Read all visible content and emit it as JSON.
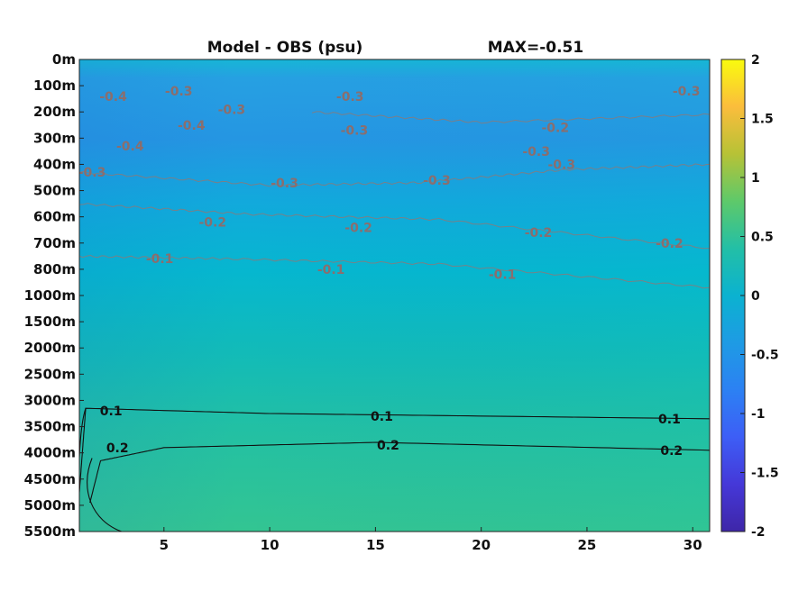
{
  "chart_data": {
    "type": "heatmap",
    "title": "Model - OBS (psu)",
    "subtitle": "MAX=-0.51",
    "x": {
      "ticks": [
        5,
        10,
        15,
        20,
        25,
        30
      ],
      "range": [
        1,
        30.8
      ]
    },
    "y": {
      "ticks": [
        "0m",
        "100m",
        "200m",
        "300m",
        "400m",
        "500m",
        "600m",
        "700m",
        "800m",
        "1000m",
        "1500m",
        "2000m",
        "2500m",
        "3000m",
        "3500m",
        "4000m",
        "4500m",
        "5000m",
        "5500m"
      ]
    },
    "colorbar": {
      "ticks": [
        "2",
        "1.5",
        "1",
        "0.5",
        "0",
        "-0.5",
        "-1",
        "-1.5",
        "-2"
      ],
      "range": [
        -2,
        2
      ],
      "colormap": "parula"
    },
    "contours": [
      {
        "level": -0.1,
        "points": [
          [
            1,
            7.5
          ],
          [
            8,
            7.6
          ],
          [
            18,
            7.8
          ],
          [
            30.8,
            8.7
          ]
        ]
      },
      {
        "level": -0.2,
        "points": [
          [
            1,
            5.5
          ],
          [
            9,
            5.9
          ],
          [
            18,
            6.1
          ],
          [
            30.8,
            7.2
          ]
        ]
      },
      {
        "level": -0.2,
        "points": [
          [
            12,
            2.0
          ],
          [
            20,
            2.4
          ],
          [
            30.8,
            2.1
          ]
        ]
      },
      {
        "level": -0.3,
        "points": [
          [
            1,
            4.3
          ],
          [
            10,
            4.8
          ],
          [
            17,
            4.7
          ],
          [
            24,
            4.2
          ],
          [
            30.8,
            4.0
          ]
        ]
      },
      {
        "level": 0.1,
        "points": [
          [
            1,
            16.5
          ],
          [
            1.3,
            13.3
          ],
          [
            10,
            13.5
          ],
          [
            30.8,
            13.7
          ]
        ]
      },
      {
        "level": 0.2,
        "points": [
          [
            1.5,
            16.9
          ],
          [
            2,
            15.3
          ],
          [
            5,
            14.8
          ],
          [
            15,
            14.6
          ],
          [
            30.8,
            14.9
          ]
        ]
      }
    ],
    "contour_labels": [
      {
        "text": "-0.1",
        "x": 4.8,
        "y": 7.6,
        "level": -0.1
      },
      {
        "text": "-0.1",
        "x": 12.9,
        "y": 8.0,
        "level": -0.1
      },
      {
        "text": "-0.1",
        "x": 21.0,
        "y": 8.2,
        "level": -0.1
      },
      {
        "text": "-0.2",
        "x": 7.3,
        "y": 6.2,
        "level": -0.2
      },
      {
        "text": "-0.2",
        "x": 14.2,
        "y": 6.4,
        "level": -0.2
      },
      {
        "text": "-0.2",
        "x": 22.7,
        "y": 6.6,
        "level": -0.2
      },
      {
        "text": "-0.2",
        "x": 28.9,
        "y": 7.0,
        "level": -0.2
      },
      {
        "text": "-0.2",
        "x": 23.5,
        "y": 2.6,
        "level": -0.2
      },
      {
        "text": "-0.3",
        "x": 10.7,
        "y": 4.7,
        "level": -0.3
      },
      {
        "text": "-0.3",
        "x": 17.9,
        "y": 4.6,
        "level": -0.3
      },
      {
        "text": "-0.3",
        "x": 5.7,
        "y": 1.2,
        "level": -0.3
      },
      {
        "text": "-0.3",
        "x": 8.2,
        "y": 1.9,
        "level": -0.3
      },
      {
        "text": "-0.3",
        "x": 14.0,
        "y": 2.7,
        "level": -0.3
      },
      {
        "text": "-0.3",
        "x": 22.6,
        "y": 3.5,
        "level": -0.3
      },
      {
        "text": "-0.3",
        "x": 23.8,
        "y": 4.0,
        "level": -0.3
      },
      {
        "text": "-0.4",
        "x": 3.4,
        "y": 3.3,
        "level": -0.4
      },
      {
        "text": "-0.4",
        "x": 2.6,
        "y": 1.4,
        "level": -0.4
      },
      {
        "text": "-0.4",
        "x": 6.3,
        "y": 2.5,
        "level": -0.4
      },
      {
        "text": "-0.3",
        "x": 13.8,
        "y": 1.4,
        "level": -0.3
      },
      {
        "text": "-0.3",
        "x": 29.7,
        "y": 1.2,
        "level": -0.3
      },
      {
        "text": "-0.3",
        "x": 1.6,
        "y": 4.3,
        "level": -0.3
      },
      {
        "text": "0.1",
        "x": 2.5,
        "y": 13.4,
        "level": 0.1
      },
      {
        "text": "0.1",
        "x": 15.3,
        "y": 13.6,
        "level": 0.1
      },
      {
        "text": "0.1",
        "x": 28.9,
        "y": 13.7,
        "level": 0.1
      },
      {
        "text": "0.2",
        "x": 2.8,
        "y": 14.8,
        "level": 0.2
      },
      {
        "text": "0.2",
        "x": 15.6,
        "y": 14.7,
        "level": 0.2
      },
      {
        "text": "0.2",
        "x": 29.0,
        "y": 14.9,
        "level": 0.2
      }
    ],
    "colors": {
      "field_top": "#1e9ae3",
      "field_mid": "#08b5cf",
      "field_low": "#21c0a2",
      "field_bottom": "#35c690",
      "neg_contour": "#8a7a7a",
      "pos_contour": "#111111"
    }
  }
}
